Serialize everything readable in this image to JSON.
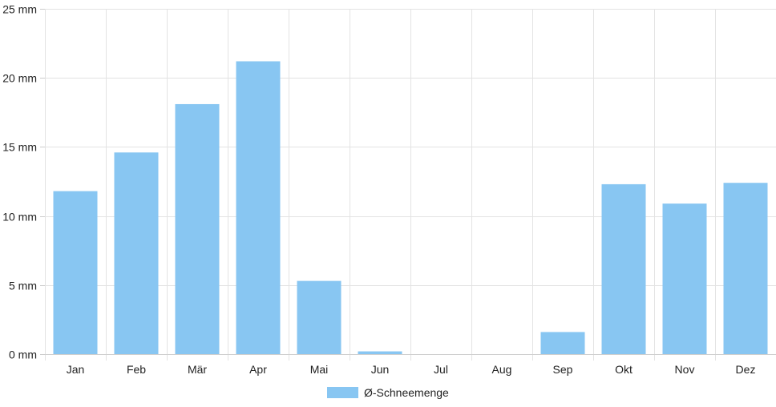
{
  "chart_data": {
    "type": "bar",
    "categories": [
      "Jan",
      "Feb",
      "Mär",
      "Apr",
      "Mai",
      "Jun",
      "Jul",
      "Aug",
      "Sep",
      "Okt",
      "Nov",
      "Dez"
    ],
    "series": [
      {
        "name": "Ø-Schneemenge",
        "values": [
          11.8,
          14.6,
          18.1,
          21.2,
          5.3,
          0.2,
          0,
          0,
          1.6,
          12.3,
          10.9,
          12.4
        ],
        "color": "#88c6f2"
      }
    ],
    "ylim": [
      0,
      25
    ],
    "yticks": [
      0,
      5,
      10,
      15,
      20,
      25
    ],
    "ytick_labels": [
      "0 mm",
      "5 mm",
      "10 mm",
      "15 mm",
      "20 mm",
      "25 mm"
    ],
    "grid": true,
    "legend_position": "bottom"
  }
}
